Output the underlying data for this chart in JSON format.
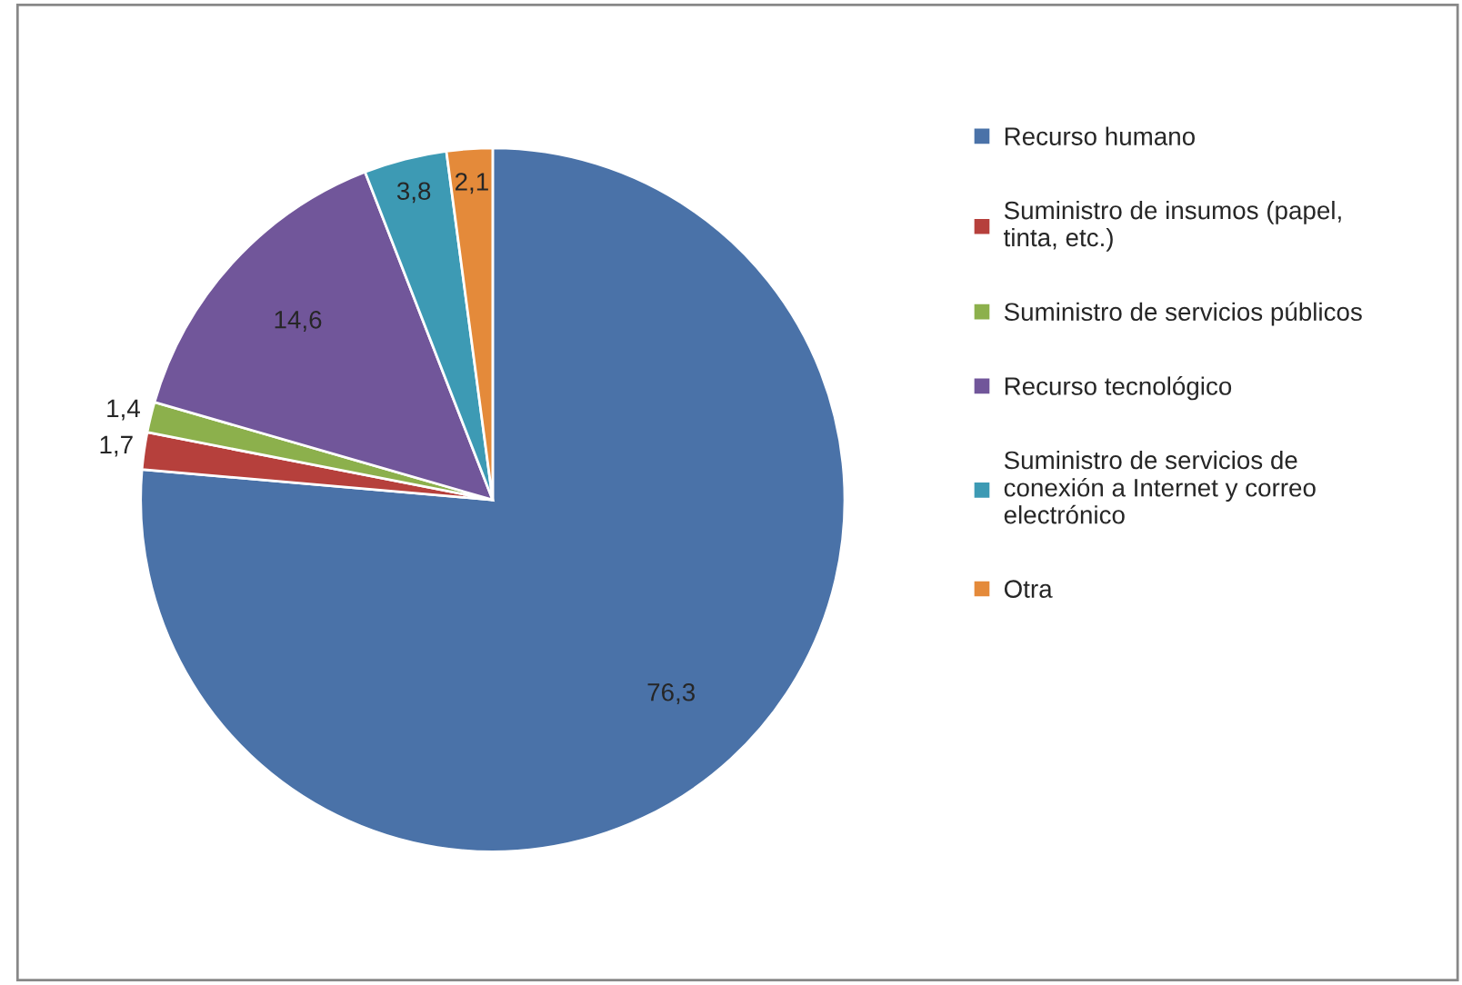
{
  "chart_data": {
    "type": "pie",
    "categories": [
      "Recurso humano",
      "Suministro de insumos (papel,\ntinta, etc.)",
      "Suministro de servicios públicos",
      "Recurso tecnológico",
      "Suministro de servicios de\nconexión a Internet y correo\nelectrónico",
      "Otra"
    ],
    "values": [
      76.3,
      1.7,
      1.4,
      14.6,
      3.8,
      2.1
    ],
    "value_labels": [
      "76,3",
      "1,7",
      "1,4",
      "14,6",
      "3,8",
      "2,1"
    ],
    "colors": [
      "#4a72a8",
      "#b6403c",
      "#8cb04c",
      "#71569a",
      "#3d9ab4",
      "#e48a3a"
    ],
    "legend": "right"
  }
}
